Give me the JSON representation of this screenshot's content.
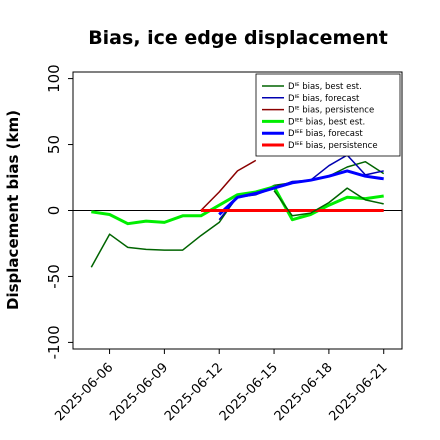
{
  "chart_data": {
    "type": "line",
    "title": "Bias, ice edge displacement",
    "xlabel": "",
    "ylabel": "Displacement bias (km)",
    "ylim": [
      -105,
      105
    ],
    "yticks": [
      -100,
      -50,
      0,
      50,
      100
    ],
    "xlim": [
      "2025-06-04",
      "2025-06-22"
    ],
    "xticks": [
      "2025-06-06",
      "2025-06-09",
      "2025-06-12",
      "2025-06-15",
      "2025-06-18",
      "2025-06-21"
    ],
    "highlighted_xtick": "2025-06-12",
    "highlight_color": "#228b22",
    "zero_line": true,
    "grid": false,
    "legend_position": "top-right",
    "series": [
      {
        "name": "Dᴵᴱ bias, best est.",
        "color": "#006400",
        "width": 1.5,
        "x": [
          "2025-06-05",
          "2025-06-06",
          "2025-06-07",
          "2025-06-08",
          "2025-06-09",
          "2025-06-10",
          "2025-06-11",
          "2025-06-12",
          "2025-06-13",
          "2025-06-14",
          "2025-06-15",
          "2025-06-16",
          "2025-06-17",
          "2025-06-18",
          "2025-06-19",
          "2025-06-20",
          "2025-06-21"
        ],
        "y": [
          -43,
          -18,
          -28,
          -29.5,
          -30,
          -30,
          -19,
          -9,
          11,
          12,
          19,
          21,
          23,
          26,
          33,
          37,
          28
        ]
      },
      {
        "name": "Dᴵᴱ bias, forecast",
        "color": "#0000b0",
        "width": 1.5,
        "x": [
          "2025-06-12",
          "2025-06-13",
          "2025-06-14",
          "2025-06-15",
          "2025-06-16",
          "2025-06-17",
          "2025-06-18",
          "2025-06-19",
          "2025-06-20",
          "2025-06-21"
        ],
        "y": [
          -7,
          10,
          12,
          17,
          22,
          23,
          34,
          42,
          27,
          30
        ]
      },
      {
        "name": "Dᴵᴱ bias, persistence",
        "color": "#8b0000",
        "width": 1.5,
        "x": [
          "2025-06-11",
          "2025-06-12",
          "2025-06-13",
          "2025-06-14"
        ],
        "y": [
          0,
          14,
          30,
          38
        ]
      },
      {
        "name": "Dᴵᴱᴱ bias, best est.",
        "color": "#00ee00",
        "width": 3,
        "x": [
          "2025-06-05",
          "2025-06-06",
          "2025-06-07",
          "2025-06-08",
          "2025-06-09",
          "2025-06-10",
          "2025-06-11",
          "2025-06-12",
          "2025-06-13",
          "2025-06-14",
          "2025-06-15",
          "2025-06-16",
          "2025-06-17",
          "2025-06-18",
          "2025-06-19",
          "2025-06-20",
          "2025-06-21"
        ],
        "y": [
          -1,
          -3,
          -10,
          -8,
          -9,
          -4,
          -4,
          4,
          12,
          14,
          18,
          -7,
          -3,
          4,
          10,
          9,
          11
        ]
      },
      {
        "name": "Dᴵᴱᴱ bias, forecast",
        "color": "#0000ff",
        "width": 3,
        "x": [
          "2025-06-12",
          "2025-06-13",
          "2025-06-14",
          "2025-06-15",
          "2025-06-16",
          "2025-06-17",
          "2025-06-18",
          "2025-06-19",
          "2025-06-20",
          "2025-06-21"
        ],
        "y": [
          -3,
          10,
          13,
          17,
          21,
          23,
          26,
          30,
          26,
          24
        ]
      },
      {
        "name": "Dᴵᴱᴱ bias, persistence",
        "color": "#ff0000",
        "width": 3,
        "x": [
          "2025-06-11",
          "2025-06-12",
          "2025-06-13",
          "2025-06-14",
          "2025-06-15",
          "2025-06-16",
          "2025-06-17",
          "2025-06-18",
          "2025-06-19",
          "2025-06-20",
          "2025-06-21"
        ],
        "y": [
          0,
          0,
          0,
          0,
          0,
          0,
          0,
          0,
          0,
          0,
          0
        ]
      },
      {
        "name": "",
        "color": "#006400",
        "width": 1.5,
        "x": [
          "2025-06-15",
          "2025-06-16",
          "2025-06-17",
          "2025-06-18",
          "2025-06-19",
          "2025-06-20",
          "2025-06-21"
        ],
        "y": [
          15,
          -4,
          -2,
          6,
          17,
          8,
          5
        ]
      }
    ]
  }
}
